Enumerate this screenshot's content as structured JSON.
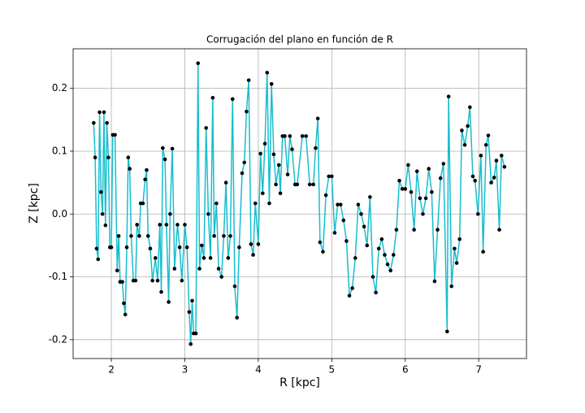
{
  "chart_data": {
    "type": "line",
    "title": "Corrugación del plano en función de R",
    "xlabel": "R [kpc]",
    "ylabel": "Z [kpc]",
    "x": [
      1.76,
      1.78,
      1.8,
      1.82,
      1.84,
      1.86,
      1.88,
      1.9,
      1.92,
      1.94,
      1.96,
      1.98,
      2.0,
      2.02,
      2.05,
      2.08,
      2.1,
      2.12,
      2.15,
      2.17,
      2.19,
      2.21,
      2.23,
      2.25,
      2.27,
      2.3,
      2.33,
      2.35,
      2.38,
      2.4,
      2.43,
      2.46,
      2.48,
      2.5,
      2.53,
      2.56,
      2.6,
      2.63,
      2.66,
      2.68,
      2.7,
      2.73,
      2.75,
      2.78,
      2.8,
      2.83,
      2.86,
      2.9,
      2.93,
      2.96,
      3.0,
      3.03,
      3.06,
      3.08,
      3.1,
      3.12,
      3.15,
      3.18,
      3.2,
      3.23,
      3.26,
      3.29,
      3.32,
      3.35,
      3.38,
      3.4,
      3.43,
      3.46,
      3.5,
      3.53,
      3.56,
      3.59,
      3.62,
      3.65,
      3.68,
      3.71,
      3.74,
      3.78,
      3.81,
      3.84,
      3.87,
      3.9,
      3.93,
      3.96,
      4.0,
      4.03,
      4.06,
      4.09,
      4.12,
      4.15,
      4.18,
      4.21,
      4.24,
      4.28,
      4.3,
      4.33,
      4.36,
      4.4,
      4.43,
      4.46,
      4.5,
      4.53,
      4.6,
      4.65,
      4.7,
      4.75,
      4.78,
      4.81,
      4.84,
      4.88,
      4.92,
      4.96,
      5.0,
      5.04,
      5.08,
      5.12,
      5.16,
      5.2,
      5.24,
      5.28,
      5.32,
      5.36,
      5.4,
      5.44,
      5.48,
      5.52,
      5.56,
      5.6,
      5.64,
      5.68,
      5.72,
      5.76,
      5.8,
      5.84,
      5.88,
      5.92,
      5.96,
      6.0,
      6.04,
      6.08,
      6.12,
      6.16,
      6.2,
      6.24,
      6.28,
      6.32,
      6.36,
      6.4,
      6.44,
      6.48,
      6.52,
      6.57,
      6.59,
      6.63,
      6.67,
      6.7,
      6.74,
      6.77,
      6.81,
      6.85,
      6.88,
      6.92,
      6.95,
      6.99,
      7.03,
      7.06,
      7.1,
      7.13,
      7.17,
      7.21,
      7.24,
      7.28,
      7.31,
      7.35
    ],
    "values": [
      0.145,
      0.09,
      -0.055,
      -0.072,
      0.162,
      0.035,
      0.0,
      0.162,
      -0.018,
      0.145,
      0.09,
      -0.053,
      -0.053,
      0.126,
      0.126,
      -0.09,
      -0.035,
      -0.108,
      -0.108,
      -0.142,
      -0.16,
      -0.053,
      0.09,
      0.072,
      -0.035,
      -0.106,
      -0.106,
      -0.017,
      -0.035,
      0.017,
      0.017,
      0.055,
      0.07,
      -0.035,
      -0.055,
      -0.106,
      -0.07,
      -0.106,
      -0.017,
      -0.124,
      0.105,
      0.087,
      -0.017,
      -0.14,
      0.0,
      0.104,
      -0.087,
      -0.017,
      -0.053,
      -0.106,
      -0.017,
      -0.053,
      -0.156,
      -0.207,
      -0.138,
      -0.19,
      -0.19,
      0.24,
      -0.087,
      -0.05,
      -0.07,
      0.137,
      0.0,
      -0.07,
      0.185,
      -0.035,
      0.017,
      -0.087,
      -0.1,
      -0.035,
      0.05,
      -0.07,
      -0.035,
      0.183,
      -0.115,
      -0.165,
      -0.053,
      0.065,
      0.082,
      0.163,
      0.213,
      -0.048,
      -0.065,
      0.017,
      -0.048,
      0.096,
      0.033,
      0.112,
      0.225,
      0.017,
      0.207,
      0.095,
      0.047,
      0.078,
      0.033,
      0.124,
      0.124,
      0.063,
      0.124,
      0.103,
      0.047,
      0.047,
      0.124,
      0.124,
      0.047,
      0.047,
      0.105,
      0.152,
      -0.045,
      -0.06,
      0.03,
      0.06,
      0.06,
      -0.03,
      0.015,
      0.015,
      -0.01,
      -0.043,
      -0.13,
      -0.118,
      -0.07,
      0.015,
      0.0,
      -0.02,
      -0.05,
      0.027,
      -0.1,
      -0.125,
      -0.055,
      -0.04,
      -0.065,
      -0.08,
      -0.09,
      -0.065,
      -0.025,
      0.053,
      0.04,
      0.04,
      0.078,
      0.035,
      -0.025,
      0.068,
      0.025,
      0.0,
      0.025,
      0.072,
      0.035,
      -0.107,
      -0.025,
      0.057,
      0.08,
      -0.187,
      0.187,
      -0.115,
      -0.055,
      -0.078,
      -0.04,
      0.133,
      0.11,
      0.14,
      0.17,
      0.06,
      0.053,
      0.0,
      0.093,
      -0.06,
      0.11,
      0.125,
      0.05,
      0.058,
      0.085,
      -0.025,
      0.093,
      0.075
    ],
    "color": "#17becf",
    "marker_color": "#000000",
    "xlim": [
      1.48,
      7.65
    ],
    "ylim": [
      -0.23,
      0.263
    ],
    "xticks": [
      2,
      3,
      4,
      5,
      6,
      7
    ],
    "yticks": [
      -0.2,
      -0.1,
      {
        "value": 0,
        "label": "0.0"
      },
      0.1,
      0.2
    ],
    "grid": true
  }
}
